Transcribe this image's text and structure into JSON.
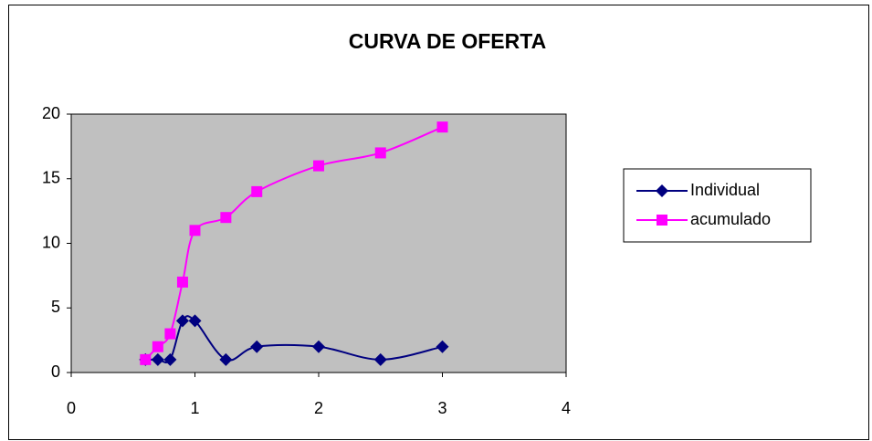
{
  "chart_data": {
    "type": "line",
    "title": "CURVA DE OFERTA",
    "x": [
      0.6,
      0.7,
      0.8,
      0.9,
      1,
      1.25,
      1.5,
      2,
      2.5,
      3
    ],
    "series": [
      {
        "name": "Individual",
        "color": "#000080",
        "marker": "diamond",
        "values": [
          1,
          1,
          1,
          4,
          4,
          1,
          2,
          2,
          1,
          2
        ]
      },
      {
        "name": "acumulado",
        "color": "#ff00ff",
        "marker": "square",
        "values": [
          1,
          2,
          3,
          7,
          11,
          12,
          14,
          16,
          17,
          19
        ]
      }
    ],
    "xlim": [
      0,
      4
    ],
    "xticks": [
      0,
      1,
      2,
      3,
      4
    ],
    "ylim": [
      0,
      20
    ],
    "yticks": [
      0,
      5,
      10,
      15,
      20
    ],
    "smooth": true,
    "grid": false,
    "plot_background": "#c0c0c0",
    "legend": "right"
  }
}
